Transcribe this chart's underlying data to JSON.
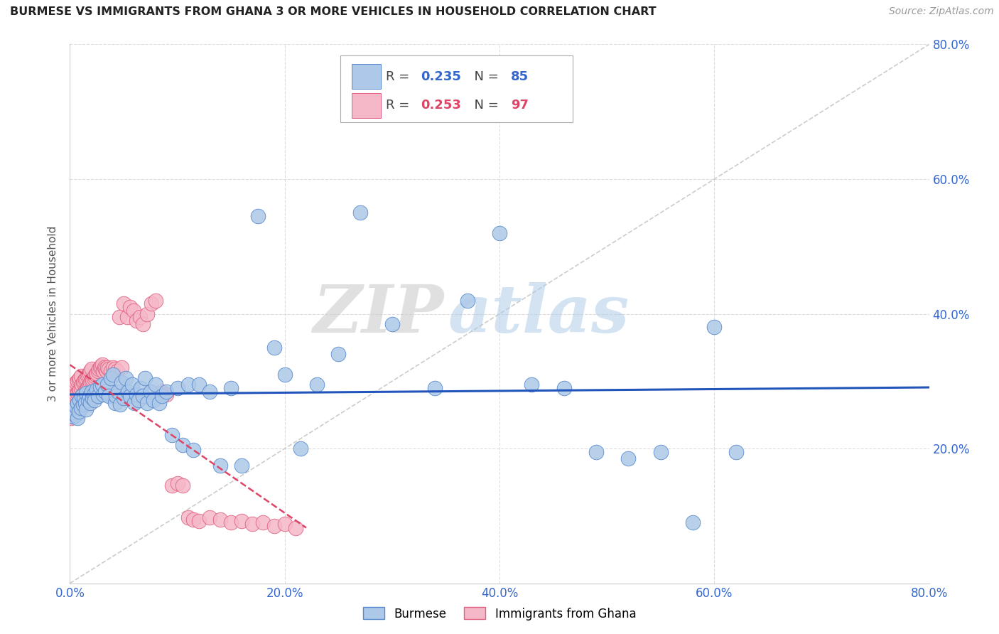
{
  "title": "BURMESE VS IMMIGRANTS FROM GHANA 3 OR MORE VEHICLES IN HOUSEHOLD CORRELATION CHART",
  "source": "Source: ZipAtlas.com",
  "ylabel": "3 or more Vehicles in Household",
  "xlim": [
    0.0,
    0.8
  ],
  "ylim": [
    0.0,
    0.8
  ],
  "xticks": [
    0.0,
    0.2,
    0.4,
    0.6,
    0.8
  ],
  "yticks": [
    0.2,
    0.4,
    0.6,
    0.8
  ],
  "xticklabels": [
    "0.0%",
    "20.0%",
    "40.0%",
    "60.0%",
    "80.0%"
  ],
  "yticklabels_right": [
    "20.0%",
    "40.0%",
    "60.0%",
    "80.0%"
  ],
  "burmese_color": "#adc8e8",
  "ghana_color": "#f5b8c8",
  "burmese_edge": "#5588cc",
  "ghana_edge": "#e06080",
  "trendline_burmese_color": "#2255bb",
  "trendline_ghana_color": "#dd4466",
  "diagonal_color": "#cccccc",
  "watermark_zip": "ZIP",
  "watermark_atlas": "atlas",
  "legend_R_burmese": "0.235",
  "legend_N_burmese": "85",
  "legend_R_ghana": "0.253",
  "legend_N_ghana": "97",
  "burmese_x": [
    0.002,
    0.003,
    0.004,
    0.005,
    0.006,
    0.007,
    0.007,
    0.008,
    0.009,
    0.01,
    0.011,
    0.012,
    0.013,
    0.014,
    0.015,
    0.015,
    0.017,
    0.018,
    0.019,
    0.02,
    0.021,
    0.022,
    0.023,
    0.025,
    0.026,
    0.028,
    0.03,
    0.031,
    0.033,
    0.035,
    0.036,
    0.038,
    0.04,
    0.042,
    0.043,
    0.045,
    0.047,
    0.048,
    0.05,
    0.052,
    0.054,
    0.056,
    0.058,
    0.06,
    0.062,
    0.064,
    0.066,
    0.068,
    0.07,
    0.072,
    0.075,
    0.078,
    0.08,
    0.083,
    0.086,
    0.09,
    0.095,
    0.1,
    0.105,
    0.11,
    0.115,
    0.12,
    0.13,
    0.14,
    0.15,
    0.16,
    0.175,
    0.19,
    0.2,
    0.215,
    0.23,
    0.25,
    0.27,
    0.3,
    0.34,
    0.37,
    0.4,
    0.43,
    0.46,
    0.49,
    0.52,
    0.55,
    0.58,
    0.6,
    0.62
  ],
  "burmese_y": [
    0.255,
    0.248,
    0.258,
    0.25,
    0.262,
    0.245,
    0.268,
    0.255,
    0.272,
    0.26,
    0.278,
    0.265,
    0.275,
    0.268,
    0.282,
    0.258,
    0.272,
    0.278,
    0.268,
    0.285,
    0.275,
    0.28,
    0.272,
    0.288,
    0.278,
    0.292,
    0.295,
    0.28,
    0.285,
    0.295,
    0.278,
    0.305,
    0.31,
    0.268,
    0.278,
    0.285,
    0.265,
    0.298,
    0.275,
    0.305,
    0.285,
    0.278,
    0.295,
    0.268,
    0.28,
    0.272,
    0.29,
    0.278,
    0.305,
    0.268,
    0.285,
    0.272,
    0.295,
    0.268,
    0.278,
    0.285,
    0.22,
    0.29,
    0.205,
    0.295,
    0.198,
    0.295,
    0.285,
    0.175,
    0.29,
    0.175,
    0.545,
    0.35,
    0.31,
    0.2,
    0.295,
    0.34,
    0.55,
    0.385,
    0.29,
    0.42,
    0.52,
    0.295,
    0.29,
    0.195,
    0.185,
    0.195,
    0.09,
    0.38,
    0.195
  ],
  "ghana_x": [
    0.001,
    0.001,
    0.002,
    0.002,
    0.003,
    0.003,
    0.003,
    0.004,
    0.004,
    0.004,
    0.005,
    0.005,
    0.005,
    0.006,
    0.006,
    0.006,
    0.007,
    0.007,
    0.007,
    0.008,
    0.008,
    0.008,
    0.009,
    0.009,
    0.009,
    0.01,
    0.01,
    0.01,
    0.011,
    0.011,
    0.012,
    0.012,
    0.013,
    0.013,
    0.014,
    0.014,
    0.015,
    0.015,
    0.016,
    0.016,
    0.017,
    0.017,
    0.018,
    0.018,
    0.019,
    0.019,
    0.02,
    0.02,
    0.021,
    0.022,
    0.023,
    0.024,
    0.025,
    0.026,
    0.027,
    0.028,
    0.029,
    0.03,
    0.031,
    0.032,
    0.033,
    0.034,
    0.035,
    0.036,
    0.038,
    0.04,
    0.042,
    0.044,
    0.046,
    0.048,
    0.05,
    0.053,
    0.056,
    0.059,
    0.062,
    0.065,
    0.068,
    0.072,
    0.076,
    0.08,
    0.085,
    0.09,
    0.095,
    0.1,
    0.105,
    0.11,
    0.115,
    0.12,
    0.13,
    0.14,
    0.15,
    0.16,
    0.17,
    0.18,
    0.19,
    0.2,
    0.21
  ],
  "ghana_y": [
    0.245,
    0.265,
    0.252,
    0.278,
    0.248,
    0.268,
    0.285,
    0.255,
    0.272,
    0.29,
    0.26,
    0.278,
    0.295,
    0.262,
    0.28,
    0.298,
    0.265,
    0.282,
    0.3,
    0.268,
    0.285,
    0.302,
    0.27,
    0.288,
    0.305,
    0.272,
    0.29,
    0.308,
    0.278,
    0.295,
    0.28,
    0.298,
    0.282,
    0.3,
    0.285,
    0.302,
    0.288,
    0.305,
    0.29,
    0.308,
    0.292,
    0.31,
    0.295,
    0.312,
    0.298,
    0.315,
    0.3,
    0.318,
    0.302,
    0.305,
    0.308,
    0.31,
    0.312,
    0.315,
    0.318,
    0.32,
    0.322,
    0.325,
    0.315,
    0.32,
    0.318,
    0.315,
    0.32,
    0.318,
    0.315,
    0.32,
    0.318,
    0.315,
    0.395,
    0.32,
    0.415,
    0.395,
    0.41,
    0.405,
    0.39,
    0.395,
    0.385,
    0.4,
    0.415,
    0.42,
    0.285,
    0.28,
    0.145,
    0.148,
    0.145,
    0.098,
    0.095,
    0.092,
    0.098,
    0.095,
    0.09,
    0.092,
    0.088,
    0.09,
    0.085,
    0.088,
    0.082
  ]
}
